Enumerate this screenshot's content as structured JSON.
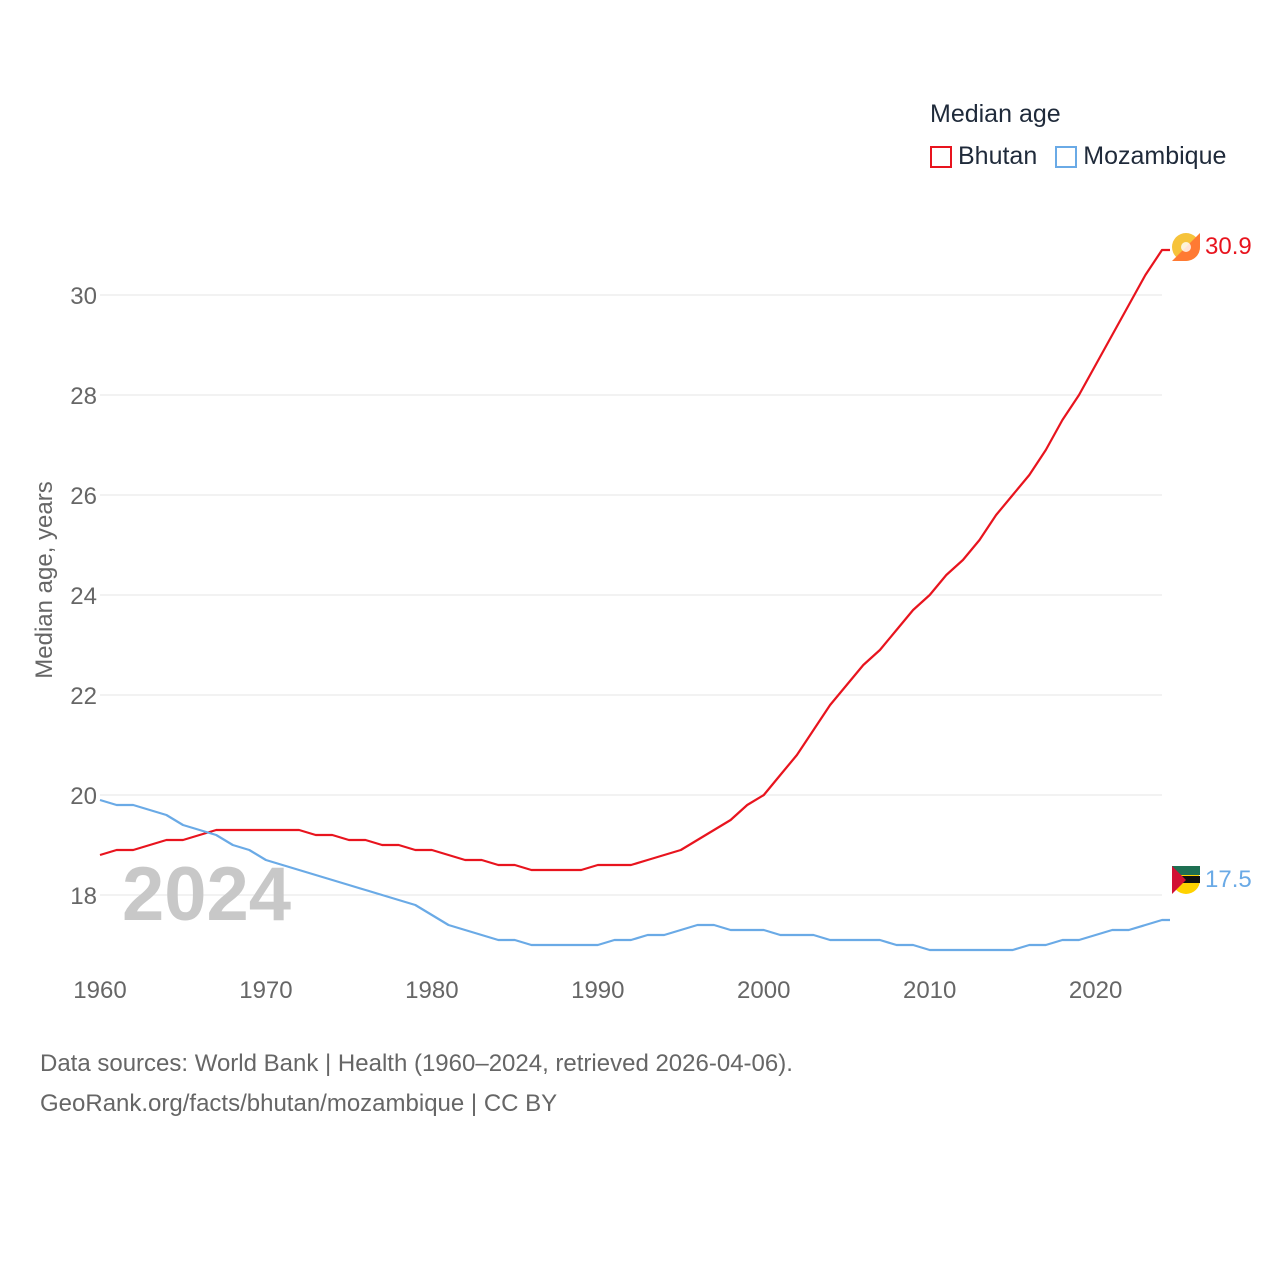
{
  "legend": {
    "title": "Median age",
    "series": [
      {
        "name": "Bhutan",
        "color": "#e8141e"
      },
      {
        "name": "Mozambique",
        "color": "#6aaae6"
      }
    ]
  },
  "year_label": "2024",
  "footer": {
    "line1": "Data sources: World Bank | Health (1960–2024, retrieved 2026-04-06).",
    "line2": "GeoRank.org/facts/bhutan/mozambique | CC BY"
  },
  "chart_data": {
    "type": "line",
    "title": "Median age",
    "xlabel": "",
    "ylabel": "Median age, years",
    "xlim": [
      1960,
      2024
    ],
    "ylim": [
      16.7,
      31.5
    ],
    "x_ticks": [
      "1960",
      "1970",
      "1980",
      "1990",
      "2000",
      "2010",
      "2020"
    ],
    "y_ticks": [
      "18",
      "20",
      "22",
      "24",
      "26",
      "28",
      "30"
    ],
    "grid": true,
    "legend_position": "top-right",
    "end_labels": [
      "30.9",
      "17.5"
    ],
    "x": [
      1960,
      1961,
      1962,
      1963,
      1964,
      1965,
      1966,
      1967,
      1968,
      1969,
      1970,
      1971,
      1972,
      1973,
      1974,
      1975,
      1976,
      1977,
      1978,
      1979,
      1980,
      1981,
      1982,
      1983,
      1984,
      1985,
      1986,
      1987,
      1988,
      1989,
      1990,
      1991,
      1992,
      1993,
      1994,
      1995,
      1996,
      1997,
      1998,
      1999,
      2000,
      2001,
      2002,
      2003,
      2004,
      2005,
      2006,
      2007,
      2008,
      2009,
      2010,
      2011,
      2012,
      2013,
      2014,
      2015,
      2016,
      2017,
      2018,
      2019,
      2020,
      2021,
      2022,
      2023,
      2024
    ],
    "series": [
      {
        "name": "Bhutan",
        "color": "#e8141e",
        "values": [
          18.8,
          18.9,
          18.9,
          19.0,
          19.1,
          19.1,
          19.2,
          19.3,
          19.3,
          19.3,
          19.3,
          19.3,
          19.3,
          19.2,
          19.2,
          19.1,
          19.1,
          19.0,
          19.0,
          18.9,
          18.9,
          18.8,
          18.7,
          18.7,
          18.6,
          18.6,
          18.5,
          18.5,
          18.5,
          18.5,
          18.6,
          18.6,
          18.6,
          18.7,
          18.8,
          18.9,
          19.1,
          19.3,
          19.5,
          19.8,
          20.0,
          20.4,
          20.8,
          21.3,
          21.8,
          22.2,
          22.6,
          22.9,
          23.3,
          23.7,
          24.0,
          24.4,
          24.7,
          25.1,
          25.6,
          26.0,
          26.4,
          26.9,
          27.5,
          28.0,
          28.6,
          29.2,
          29.8,
          30.4,
          30.9
        ]
      },
      {
        "name": "Mozambique",
        "color": "#6aaae6",
        "values": [
          19.9,
          19.8,
          19.8,
          19.7,
          19.6,
          19.4,
          19.3,
          19.2,
          19.0,
          18.9,
          18.7,
          18.6,
          18.5,
          18.4,
          18.3,
          18.2,
          18.1,
          18.0,
          17.9,
          17.8,
          17.6,
          17.4,
          17.3,
          17.2,
          17.1,
          17.1,
          17.0,
          17.0,
          17.0,
          17.0,
          17.0,
          17.1,
          17.1,
          17.2,
          17.2,
          17.3,
          17.4,
          17.4,
          17.3,
          17.3,
          17.3,
          17.2,
          17.2,
          17.2,
          17.1,
          17.1,
          17.1,
          17.1,
          17.0,
          17.0,
          16.9,
          16.9,
          16.9,
          16.9,
          16.9,
          16.9,
          17.0,
          17.0,
          17.1,
          17.1,
          17.2,
          17.3,
          17.3,
          17.4,
          17.5
        ]
      }
    ]
  }
}
